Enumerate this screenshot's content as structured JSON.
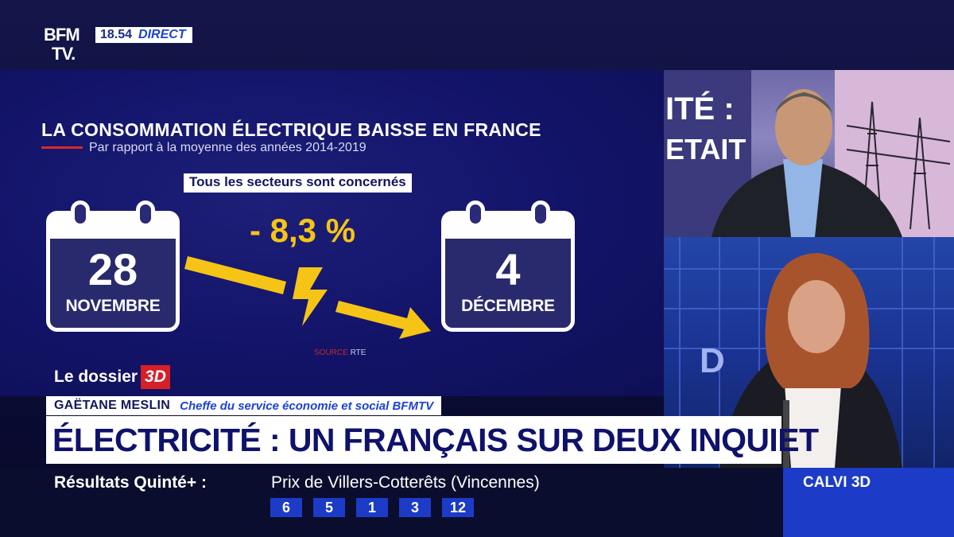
{
  "channel": {
    "logo_line1": "BFM",
    "logo_line2": "TV.",
    "time": "18.54",
    "live": "DIRECT"
  },
  "graphic": {
    "title": "LA CONSOMMATION ÉLECTRIQUE BAISSE EN FRANCE",
    "subtitle": "Par rapport à la moyenne des années 2014-2019",
    "sectors": "Tous les secteurs sont concernés",
    "percent": "- 8,3 %",
    "from": {
      "day": "28",
      "month": "NOVEMBRE"
    },
    "to": {
      "day": "4",
      "month": "DÉCEMBRE"
    },
    "source_label": "SOURCE",
    "source_name": "RTE"
  },
  "segment": {
    "label": "Le dossier",
    "badge": "3D"
  },
  "guest": {
    "name": "GAËTANE MESLIN",
    "role": "Cheffe du service économie et social BFMTV"
  },
  "headline": "ÉLECTRICITÉ : UN FRANÇAIS SUR DEUX INQUIET",
  "ticker": {
    "label": "Résultats Quinté+",
    "race": "Prix de Villers-Cotterêts (Vincennes)",
    "numbers": [
      "6",
      "5",
      "1",
      "3",
      "12"
    ]
  },
  "next_show": "CALVI 3D",
  "colors": {
    "accent_yellow": "#f6c416",
    "brand_blue": "#1c3bc7",
    "red": "#d61f26"
  }
}
